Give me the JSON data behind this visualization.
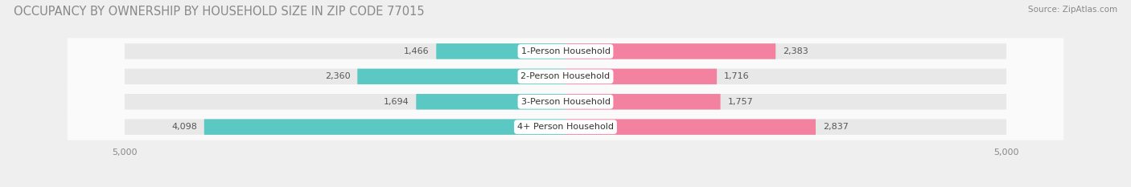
{
  "title": "OCCUPANCY BY OWNERSHIP BY HOUSEHOLD SIZE IN ZIP CODE 77015",
  "source": "Source: ZipAtlas.com",
  "categories": [
    "1-Person Household",
    "2-Person Household",
    "3-Person Household",
    "4+ Person Household"
  ],
  "owner_values": [
    1466,
    2360,
    1694,
    4098
  ],
  "renter_values": [
    2383,
    1716,
    1757,
    2837
  ],
  "max_value": 5000,
  "owner_color": "#5BC8C4",
  "renter_color": "#F282A0",
  "bg_color": "#EFEFEF",
  "row_bg_color": "#FAFAFA",
  "row_sep_color": "#E0E0E0",
  "title_fontsize": 10.5,
  "label_fontsize": 8,
  "tick_fontsize": 8,
  "legend_fontsize": 8.5,
  "source_fontsize": 7.5,
  "title_color": "#888888",
  "source_color": "#888888",
  "value_color": "#555555",
  "cat_label_color": "#333333"
}
